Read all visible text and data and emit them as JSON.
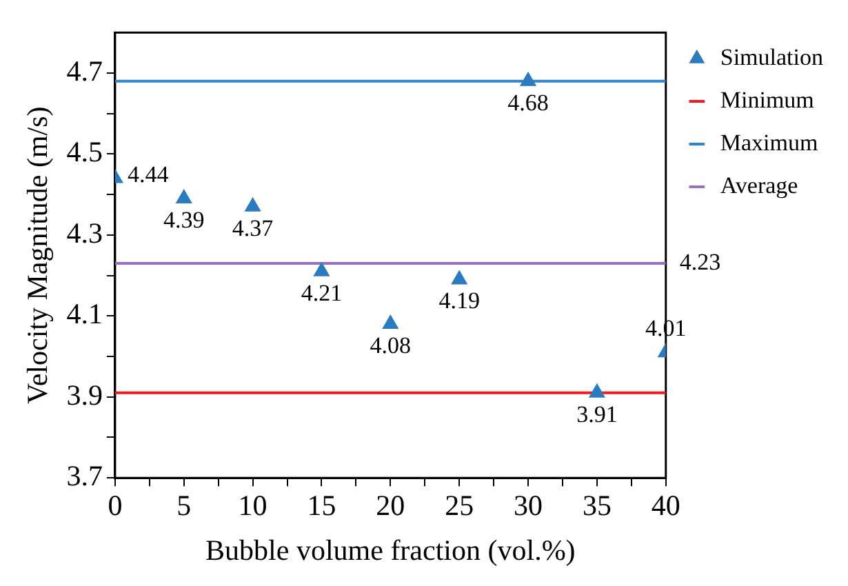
{
  "chart_data": {
    "type": "scatter",
    "xlabel": "Bubble volume fraction (vol.%)",
    "ylabel": "Velocity Magnitude (m/s)",
    "xlim": [
      0,
      40
    ],
    "ylim": [
      3.7,
      4.8
    ],
    "xticks": [
      0,
      {
        "value": 2.5,
        "label": null
      },
      5,
      {
        "value": 7.5,
        "label": null
      },
      10,
      {
        "value": 12.5,
        "label": null
      },
      15,
      {
        "value": 17.5,
        "label": null
      },
      20,
      {
        "value": 22.5,
        "label": null
      },
      25,
      {
        "value": 27.5,
        "label": null
      },
      30,
      {
        "value": 32.5,
        "label": null
      },
      35,
      {
        "value": 37.5,
        "label": null
      },
      40
    ],
    "yticks": [
      3.7,
      {
        "value": 3.8,
        "label": null
      },
      3.9,
      {
        "value": 4.0,
        "label": null
      },
      4.1,
      {
        "value": 4.2,
        "label": null
      },
      4.3,
      {
        "value": 4.4,
        "label": null
      },
      4.5,
      {
        "value": 4.6,
        "label": null
      },
      4.7
    ],
    "legend": "right",
    "series": [
      {
        "name": "Simulation",
        "marker": "triangle",
        "color": "#2a7bbf",
        "x": [
          0,
          5,
          10,
          15,
          20,
          25,
          30,
          35,
          40
        ],
        "values": [
          4.44,
          4.39,
          4.37,
          4.21,
          4.08,
          4.19,
          4.68,
          3.91,
          4.01
        ],
        "value_labels": [
          "4.44",
          "4.39",
          "4.37",
          "4.21",
          "4.08",
          "4.19",
          "4.68",
          "3.91",
          "4.01"
        ]
      },
      {
        "name": "Minimum",
        "type": "line",
        "marker": "none",
        "color": "#ee1c1c",
        "x": [
          0,
          40
        ],
        "values": [
          3.91,
          3.91
        ]
      },
      {
        "name": "Maximum",
        "type": "line",
        "marker": "none",
        "color": "#2e86d1",
        "x": [
          0,
          40
        ],
        "values": [
          4.68,
          4.68
        ]
      },
      {
        "name": "Average",
        "type": "line",
        "marker": "none",
        "color": "#9b6fc0",
        "x": [
          0,
          40
        ],
        "values": [
          4.23,
          4.23
        ],
        "value_labels": [
          null,
          "4.23"
        ]
      }
    ]
  }
}
